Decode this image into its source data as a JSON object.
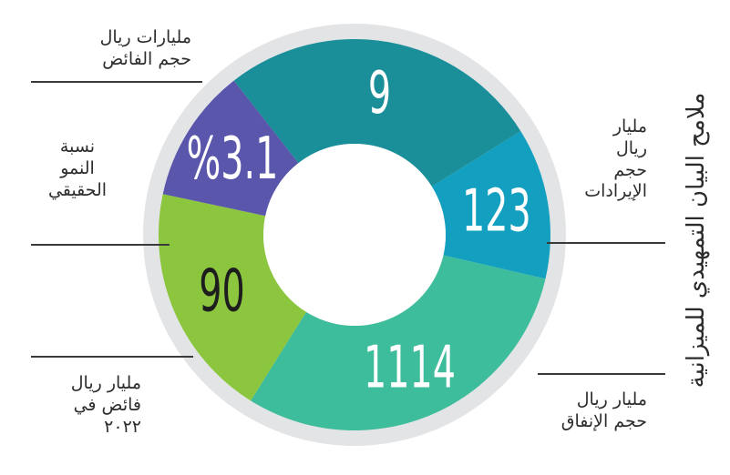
{
  "title": "ملامح البيان التمهيدي للميزانية",
  "chart_data": {
    "type": "pie",
    "segments": [
      {
        "value_label": "9",
        "color": "#1a8f99",
        "caption_lines": [
          "مليارات ريال",
          "حجم الفائض"
        ]
      },
      {
        "value_label": "123",
        "color": "#139fc0",
        "caption_lines": [
          "مليار",
          "ريال",
          "حجم",
          "الإيرادات"
        ]
      },
      {
        "value_label": "1114",
        "color": "#3ebd9c",
        "caption_lines": [
          "مليار ريال",
          "حجم الإنفاق"
        ]
      },
      {
        "value_label": "90",
        "color": "#8cc63f",
        "caption_lines": [
          "مليار ريال",
          "فائض في",
          "٢٠٢٢"
        ]
      },
      {
        "value_label": "%3.1",
        "color": "#5a56ac",
        "caption_lines": [
          "نسبة",
          "النمو",
          "الحقيقي"
        ]
      }
    ]
  }
}
